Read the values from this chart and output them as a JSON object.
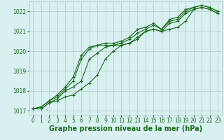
{
  "xlabel": "Graphe pression niveau de la mer (hPa)",
  "x": [
    0,
    1,
    2,
    3,
    4,
    5,
    6,
    7,
    8,
    9,
    10,
    11,
    12,
    13,
    14,
    15,
    16,
    17,
    18,
    19,
    20,
    21,
    22,
    23
  ],
  "series": [
    [
      1017.1,
      1017.1,
      1017.4,
      1017.5,
      1017.7,
      1017.8,
      1018.1,
      1018.4,
      1018.8,
      1019.6,
      1020.0,
      1020.3,
      1020.4,
      1020.7,
      1021.0,
      1021.1,
      1021.0,
      1021.1,
      1021.2,
      1021.5,
      1022.1,
      1022.2,
      1022.1,
      1021.9
    ],
    [
      1017.1,
      1017.1,
      1017.4,
      1017.6,
      1018.0,
      1018.2,
      1018.5,
      1019.6,
      1019.9,
      1020.2,
      1020.3,
      1020.3,
      1020.4,
      1020.6,
      1021.0,
      1021.1,
      1021.0,
      1021.4,
      1021.5,
      1021.9,
      1022.1,
      1022.2,
      1022.1,
      1021.9
    ],
    [
      1017.1,
      1017.2,
      1017.5,
      1017.7,
      1018.1,
      1018.5,
      1019.6,
      1020.1,
      1020.3,
      1020.3,
      1020.3,
      1020.4,
      1020.6,
      1020.9,
      1021.1,
      1021.3,
      1021.1,
      1021.5,
      1021.6,
      1022.0,
      1022.2,
      1022.3,
      1022.2,
      1022.0
    ],
    [
      1017.1,
      1017.2,
      1017.5,
      1017.8,
      1018.2,
      1018.7,
      1019.8,
      1020.2,
      1020.3,
      1020.4,
      1020.4,
      1020.5,
      1020.7,
      1021.1,
      1021.2,
      1021.4,
      1021.1,
      1021.6,
      1021.7,
      1022.1,
      1022.2,
      1022.3,
      1022.2,
      1022.0
    ]
  ],
  "line_color": "#1a6b1a",
  "marker": "+",
  "markersize": 3,
  "linewidth": 0.8,
  "bg_color": "#d8f0f0",
  "grid_color": "#b0c8c8",
  "ylim": [
    1016.8,
    1022.5
  ],
  "yticks": [
    1017,
    1018,
    1019,
    1020,
    1021,
    1022
  ],
  "xticks": [
    0,
    1,
    2,
    3,
    4,
    5,
    6,
    7,
    8,
    9,
    10,
    11,
    12,
    13,
    14,
    15,
    16,
    17,
    18,
    19,
    20,
    21,
    22,
    23
  ],
  "tick_fontsize": 5.5,
  "label_fontsize": 7,
  "label_fontweight": "bold"
}
